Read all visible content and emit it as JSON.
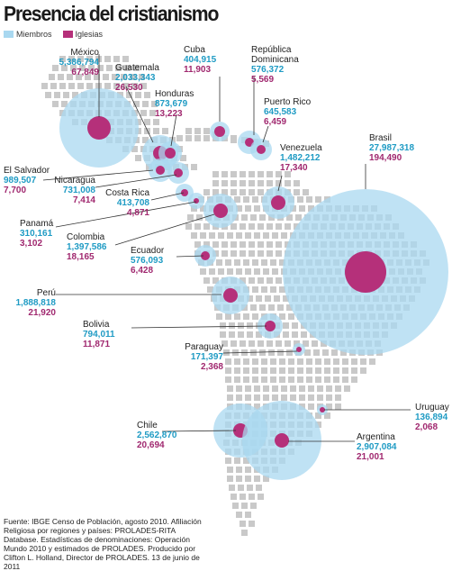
{
  "title": "Presencia del cristianismo",
  "legend": {
    "members_label": "Miembros",
    "churches_label": "Iglesias",
    "members_color": "#a9d8f0",
    "churches_color": "#b5307a"
  },
  "countries": [
    {
      "name": "México",
      "members": "5,386,794",
      "churches": "67,849"
    },
    {
      "name": "Guatemala",
      "members": "2,033,343",
      "churches": "26,530"
    },
    {
      "name": "Cuba",
      "members": "404,915",
      "churches": "11,903"
    },
    {
      "name": "República Dominicana",
      "members": "576,372",
      "churches": "5,569"
    },
    {
      "name": "Honduras",
      "members": "873,679",
      "churches": "13,223"
    },
    {
      "name": "Puerto Rico",
      "members": "645,583",
      "churches": "6,459"
    },
    {
      "name": "Venezuela",
      "members": "1,482,212",
      "churches": "17,340"
    },
    {
      "name": "Brasil",
      "members": "27,987,318",
      "churches": "194,490"
    },
    {
      "name": "El Salvador",
      "members": "989,507",
      "churches": "7,700"
    },
    {
      "name": "Nicaragua",
      "members": "731,008",
      "churches": "7,414"
    },
    {
      "name": "Costa Rica",
      "members": "413,708",
      "churches": "4,871"
    },
    {
      "name": "Panamá",
      "members": "310,161",
      "churches": "3,102"
    },
    {
      "name": "Colombia",
      "members": "1,397,586",
      "churches": "18,165"
    },
    {
      "name": "Ecuador",
      "members": "576,093",
      "churches": "6,428"
    },
    {
      "name": "Perú",
      "members": "1,888,818",
      "churches": "21,920"
    },
    {
      "name": "Bolivia",
      "members": "794,011",
      "churches": "11,871"
    },
    {
      "name": "Paraguay",
      "members": "171,397",
      "churches": "2,368"
    },
    {
      "name": "Uruguay",
      "members": "136,894",
      "churches": "2,068"
    },
    {
      "name": "Chile",
      "members": "2,562,870",
      "churches": "20,694"
    },
    {
      "name": "Argentina",
      "members": "2,907,084",
      "churches": "21,001"
    }
  ],
  "source": "Fuente: IBGE Censo de Población, agosto 2010. Afiliación Religiosa por regiones y países: PROLADES-RITA Database. Estadísticas de denominaciones: Operación Mundo 2010 y estimados de PROLADES. Producido por Clifton L. Holland, Director de PROLADES. 13 de junio de 2011"
}
